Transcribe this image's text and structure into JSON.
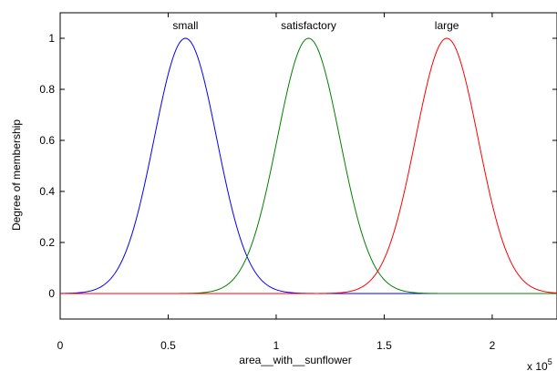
{
  "chart_data": {
    "type": "line",
    "title": "",
    "xlabel": "area__with__sunflower",
    "ylabel": "Degree of membership",
    "x_multiplier_label": "x 10",
    "x_multiplier_exponent": "5",
    "xlim": [
      0,
      2.3
    ],
    "ylim": [
      -0.1,
      1.1
    ],
    "xticks": [
      0,
      0.5,
      1,
      1.5,
      2
    ],
    "xtick_labels": [
      "0",
      "0.5",
      "1",
      "1.5",
      "2"
    ],
    "yticks": [
      0,
      0.2,
      0.4,
      0.6,
      0.8,
      1
    ],
    "ytick_labels": [
      "0",
      "0.2",
      "0.4",
      "0.6",
      "0.8",
      "1"
    ],
    "grid": false,
    "series": [
      {
        "name": "small",
        "shape": "gaussian",
        "center": 0.58,
        "sigma": 0.145,
        "color": "#0000ff"
      },
      {
        "name": "satisfactory",
        "shape": "gaussian",
        "center": 1.15,
        "sigma": 0.145,
        "color": "#008000"
      },
      {
        "name": "large",
        "shape": "gaussian",
        "center": 1.79,
        "sigma": 0.145,
        "color": "#ff0000"
      }
    ]
  }
}
